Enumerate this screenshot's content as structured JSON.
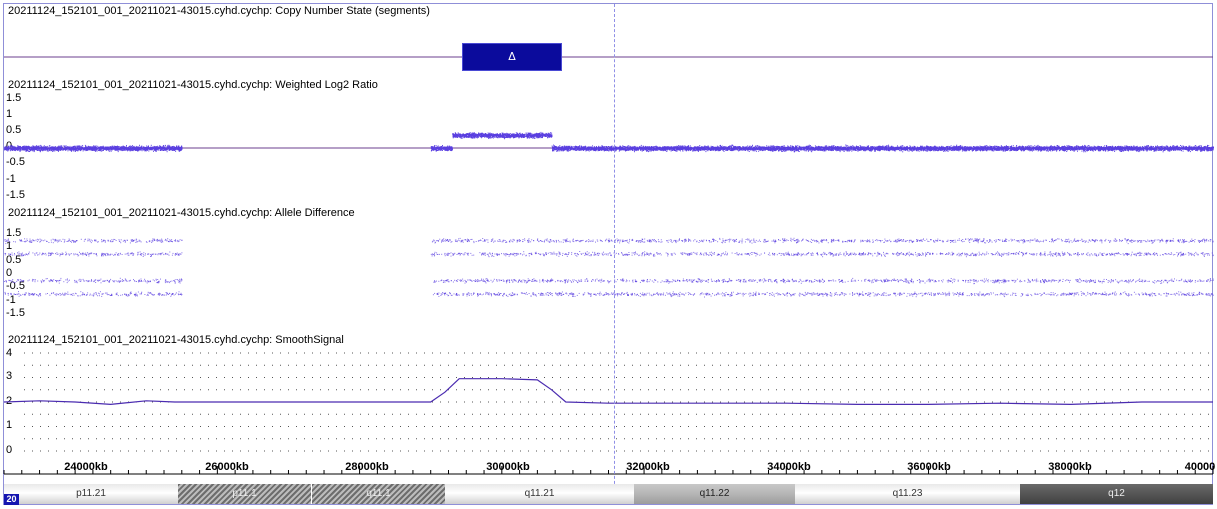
{
  "panels": {
    "cn_state": {
      "title": "20211124_152101_001_20211021-43015.cyhd.cychp: Copy Number State (segments)"
    },
    "log2": {
      "title": "20211124_152101_001_20211021-43015.cyhd.cychp: Weighted Log2 Ratio",
      "ticks": [
        "1.5",
        "1",
        "0.5",
        "0",
        "-0.5",
        "-1",
        "-1.5"
      ]
    },
    "allele": {
      "title": "20211124_152101_001_20211021-43015.cyhd.cychp: Allele Difference",
      "ticks": [
        "1.5",
        "1",
        "0.5",
        "0",
        "-0.5",
        "-1",
        "-1.5"
      ]
    },
    "smooth": {
      "title": "20211124_152101_001_20211021-43015.cyhd.cychp: SmoothSignal",
      "ticks": [
        "4",
        "3",
        "2",
        "1",
        "0"
      ]
    }
  },
  "segment": {
    "symbol": "Δ",
    "copy_number_state": 3,
    "start_kb": 29000,
    "end_kb": 30700
  },
  "axis": {
    "tick_labels": [
      "24000kb",
      "26000kb",
      "28000kb",
      "30000kb",
      "32000kb",
      "34000kb",
      "36000kb",
      "38000kb",
      "40000"
    ]
  },
  "cytobands": [
    {
      "name": "p11.21",
      "style": "light"
    },
    {
      "name": "p11.1",
      "style": "hatch"
    },
    {
      "name": "q11.1",
      "style": "hatch"
    },
    {
      "name": "q11.21",
      "style": "light"
    },
    {
      "name": "q11.22",
      "style": "mid"
    },
    {
      "name": "q11.23",
      "style": "light"
    },
    {
      "name": "q12",
      "style": "dark"
    }
  ],
  "chromosome": "20",
  "colors": {
    "data_points": "#5a3fe0",
    "smooth_line": "#4a2bb0",
    "segment_fill": "#0b0b9c",
    "cursor": "#8f8fe6",
    "baseline": "#6b3f8f"
  },
  "chart_data": {
    "type": "scatter",
    "x_unit": "kb",
    "xlim": [
      23000,
      40000
    ],
    "no_data_gap_kb": [
      25500,
      29000
    ],
    "series": [
      {
        "name": "Weighted Log2 Ratio",
        "segments": [
          {
            "x_range": [
              23000,
              25500
            ],
            "mean": 0.0
          },
          {
            "x_range": [
              29000,
              29300
            ],
            "mean": 0.0
          },
          {
            "x_range": [
              29300,
              30700
            ],
            "mean": 0.4
          },
          {
            "x_range": [
              30700,
              40000
            ],
            "mean": 0.0
          }
        ]
      },
      {
        "name": "Allele Difference",
        "bands": [
          1,
          0.5,
          -0.5,
          -1
        ]
      },
      {
        "name": "SmoothSignal",
        "points": [
          [
            23000,
            2.0
          ],
          [
            23500,
            2.05
          ],
          [
            24000,
            2.0
          ],
          [
            24500,
            1.9
          ],
          [
            25000,
            2.05
          ],
          [
            25400,
            2.0
          ],
          [
            25500,
            2.0
          ],
          [
            29000,
            2.0
          ],
          [
            29200,
            2.4
          ],
          [
            29400,
            2.95
          ],
          [
            29600,
            2.95
          ],
          [
            30000,
            2.95
          ],
          [
            30500,
            2.9
          ],
          [
            30700,
            2.5
          ],
          [
            30900,
            2.0
          ],
          [
            31500,
            1.95
          ],
          [
            32000,
            1.95
          ],
          [
            33000,
            1.95
          ],
          [
            34000,
            1.95
          ],
          [
            35000,
            1.9
          ],
          [
            36000,
            1.9
          ],
          [
            37000,
            1.95
          ],
          [
            38000,
            1.9
          ],
          [
            39000,
            2.0
          ],
          [
            40000,
            2.0
          ]
        ]
      }
    ]
  }
}
